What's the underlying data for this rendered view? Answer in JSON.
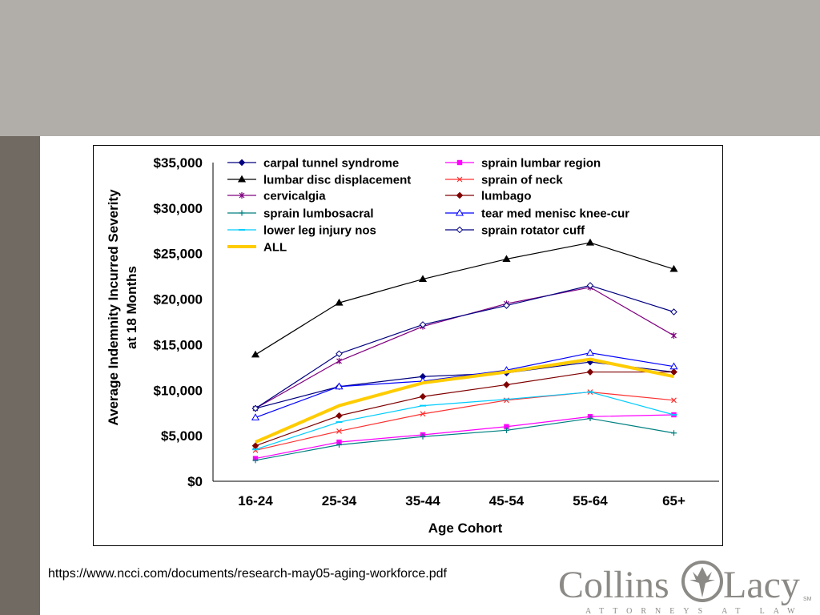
{
  "source_url": "https://www.ncci.com/documents/research-may05-aging-workforce.pdf",
  "logo": {
    "left": "Collins",
    "right": "Lacy",
    "mark": "SM",
    "tagline": "ATTORNEYS AT LAW"
  },
  "chart_data": {
    "type": "line",
    "title": "",
    "xlabel": "Age Cohort",
    "ylabel_lines": [
      "Average Indemnity Incurred Severity",
      "at 18 Months"
    ],
    "categories": [
      "16-24",
      "25-34",
      "35-44",
      "45-54",
      "55-64",
      "65+"
    ],
    "ylim": [
      0,
      35000
    ],
    "yticks": [
      0,
      5000,
      10000,
      15000,
      20000,
      25000,
      30000,
      35000
    ],
    "ytick_labels": [
      "$0",
      "$5,000",
      "$10,000",
      "$15,000",
      "$20,000",
      "$25,000",
      "$30,000",
      "$35,000"
    ],
    "grid": false,
    "legend_position": "top-left",
    "series": [
      {
        "name": "carpal tunnel syndrome",
        "color": "#000080",
        "marker": "diamond",
        "values": [
          8000,
          10400,
          11500,
          11900,
          13100,
          12000
        ]
      },
      {
        "name": "sprain lumbar region",
        "color": "#ff00ff",
        "marker": "square",
        "values": [
          2500,
          4300,
          5100,
          6000,
          7100,
          7300
        ]
      },
      {
        "name": "lumbar disc displacement",
        "color": "#000000",
        "marker": "triangle",
        "values": [
          13900,
          19600,
          22200,
          24400,
          26200,
          23300
        ]
      },
      {
        "name": "sprain of neck",
        "color": "#ff3030",
        "marker": "x",
        "values": [
          3400,
          5500,
          7400,
          8900,
          9800,
          8900
        ]
      },
      {
        "name": "cervicalgia",
        "color": "#800080",
        "marker": "star",
        "values": [
          8000,
          13200,
          17000,
          19500,
          21300,
          16000
        ]
      },
      {
        "name": "lumbago",
        "color": "#800000",
        "marker": "diamond",
        "values": [
          3900,
          7200,
          9300,
          10600,
          12000,
          12000
        ]
      },
      {
        "name": "sprain lumbosacral",
        "color": "#008080",
        "marker": "plus",
        "values": [
          2300,
          4000,
          4900,
          5600,
          6900,
          5300
        ]
      },
      {
        "name": "tear med menisc knee-cur",
        "color": "#0000ff",
        "marker": "open-triangle",
        "values": [
          7000,
          10400,
          11000,
          12200,
          14100,
          12600
        ]
      },
      {
        "name": "lower leg injury nos",
        "color": "#00ccff",
        "marker": "dash",
        "values": [
          3500,
          6500,
          8300,
          9000,
          9800,
          7300
        ]
      },
      {
        "name": "sprain rotator cuff",
        "color": "#000080",
        "marker": "open-diamond",
        "values": [
          8000,
          14000,
          17200,
          19300,
          21500,
          18600
        ]
      },
      {
        "name": "ALL",
        "color": "#ffcc00",
        "marker": "none",
        "values": [
          4300,
          8300,
          10800,
          12000,
          13400,
          11500
        ]
      }
    ]
  }
}
